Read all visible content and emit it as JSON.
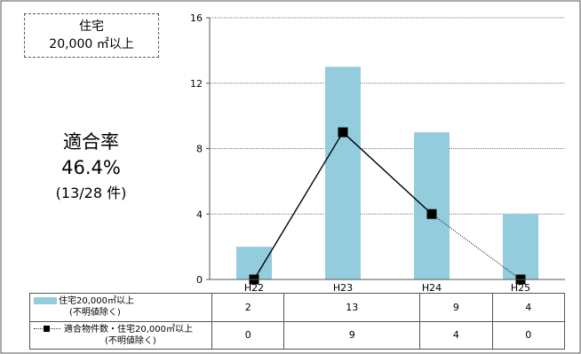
{
  "info_box": {
    "line1": "住宅",
    "line2": "20,000 ㎡以上"
  },
  "rate": {
    "label": "適合率",
    "value": "46.4%",
    "detail": "(13/28 件)"
  },
  "colors": {
    "bar": "#93CDDD",
    "line": "#000000",
    "marker": "#000000"
  },
  "chart_data": {
    "type": "bar",
    "categories": [
      "H22",
      "H23",
      "H24",
      "H25"
    ],
    "ylim": [
      0,
      16
    ],
    "yticks": [
      0,
      4,
      8,
      12,
      16
    ],
    "grid": true,
    "series": [
      {
        "name": "住宅20,000㎡以上(不明値除く)",
        "label_line1": "住宅20,000㎡以上",
        "label_line2": "(不明値除く)",
        "type": "bar",
        "values": [
          2,
          13,
          9,
          4
        ]
      },
      {
        "name": "適合物件数・住宅20,000㎡以上(不明値除く)",
        "label_line1": "適合物件数・住宅20,000㎡以上",
        "label_line2": "(不明値除く)",
        "type": "line",
        "values": [
          0,
          9,
          4,
          0
        ]
      }
    ],
    "table_values": {
      "bar": [
        "2",
        "13",
        "9",
        "4"
      ],
      "line": [
        "0",
        "9",
        "4",
        "0"
      ]
    }
  }
}
